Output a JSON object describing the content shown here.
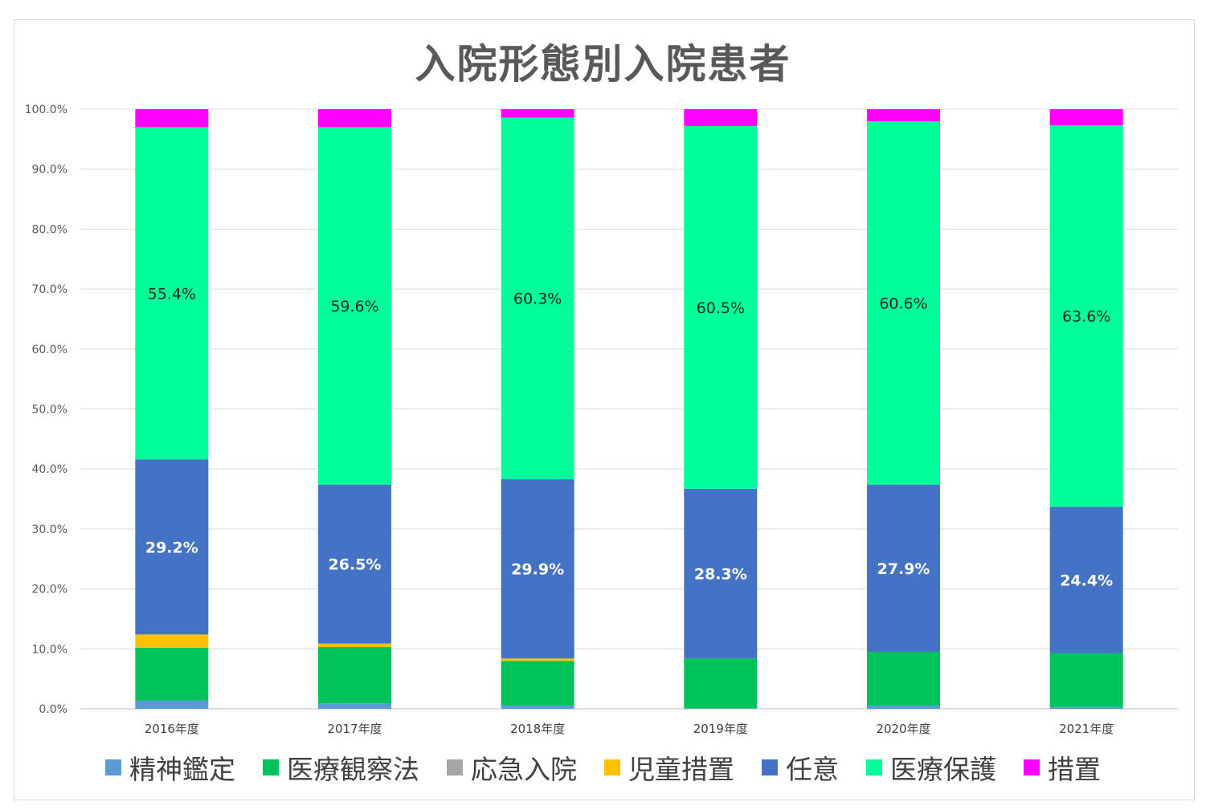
{
  "chart_data": {
    "type": "bar",
    "stacked": true,
    "title": "入院形態別入院患者",
    "categories": [
      "2016年度",
      "2017年度",
      "2018年度",
      "2019年度",
      "2020年度",
      "2021年度"
    ],
    "ylim": [
      0,
      100
    ],
    "yticks": [
      "0.0%",
      "10.0%",
      "20.0%",
      "30.0%",
      "40.0%",
      "50.0%",
      "60.0%",
      "70.0%",
      "80.0%",
      "90.0%",
      "100.0%"
    ],
    "grid": true,
    "legend_position": "bottom",
    "series": [
      {
        "name": "精神鑑定",
        "color": "#5b9bd5",
        "values": [
          1.4,
          0.9,
          0.6,
          0.1,
          0.6,
          0.3
        ],
        "labels": [
          "",
          "",
          "",
          "",
          "",
          ""
        ],
        "label_color": "#ffffff"
      },
      {
        "name": "医療観察法",
        "color": "#00c45a",
        "values": [
          8.8,
          9.4,
          7.4,
          8.3,
          8.9,
          9.0
        ],
        "labels": [
          "",
          "",
          "",
          "",
          "",
          ""
        ],
        "label_color": "#ffffff"
      },
      {
        "name": "応急入院",
        "color": "#a5a5a5",
        "values": [
          0,
          0,
          0,
          0,
          0,
          0
        ],
        "labels": [
          "",
          "",
          "",
          "",
          "",
          ""
        ],
        "label_color": "#ffffff"
      },
      {
        "name": "児童措置",
        "color": "#ffc000",
        "values": [
          2.2,
          0.6,
          0.4,
          0,
          0,
          0
        ],
        "labels": [
          "",
          "",
          "",
          "",
          "",
          ""
        ],
        "label_color": "#ffffff"
      },
      {
        "name": "任意",
        "color": "#4472c4",
        "values": [
          29.2,
          26.5,
          29.9,
          28.3,
          27.9,
          24.4
        ],
        "labels": [
          "29.2%",
          "26.5%",
          "29.9%",
          "28.3%",
          "27.9%",
          "24.4%"
        ],
        "label_color": "#ffffff"
      },
      {
        "name": "医療保護",
        "color": "#00ff99",
        "values": [
          55.4,
          59.6,
          60.3,
          60.5,
          60.6,
          63.6
        ],
        "labels": [
          "55.4%",
          "59.6%",
          "60.3%",
          "60.5%",
          "60.6%",
          "63.6%"
        ],
        "label_color": "#262626"
      },
      {
        "name": "措置",
        "color": "#ff00ff",
        "values": [
          3.0,
          3.0,
          1.4,
          2.8,
          2.0,
          2.7
        ],
        "labels": [
          "",
          "",
          "",
          "",
          "",
          ""
        ],
        "label_color": "#ffffff"
      }
    ]
  }
}
